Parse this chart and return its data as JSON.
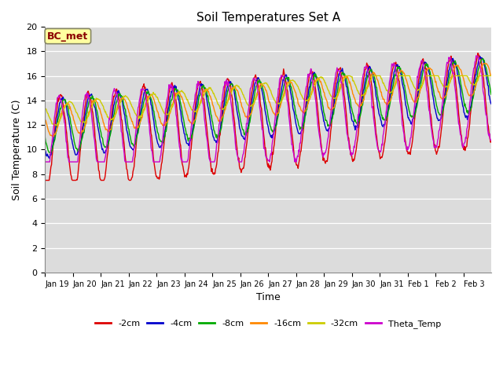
{
  "title": "Soil Temperatures Set A",
  "xlabel": "Time",
  "ylabel": "Soil Temperature (C)",
  "ylim": [
    0,
    20
  ],
  "yticks": [
    0,
    2,
    4,
    6,
    8,
    10,
    12,
    14,
    16,
    18,
    20
  ],
  "background_color": "#dcdcdc",
  "annotation_text": "BC_met",
  "annotation_color": "#8b0000",
  "annotation_bg": "#ffffa0",
  "series_colors": {
    "-2cm": "#dd0000",
    "-4cm": "#0000cc",
    "-8cm": "#00aa00",
    "-16cm": "#ff8800",
    "-32cm": "#cccc00",
    "Theta_Temp": "#cc00cc"
  },
  "n_days": 16,
  "tick_labels": [
    "Jan 19",
    "Jan 20",
    "Jan 21",
    "Jan 22",
    "Jan 23",
    "Jan 24",
    "Jan 25",
    "Jan 26",
    "Jan 27",
    "Jan 28",
    "Jan 29",
    "Jan 30",
    "Jan 31",
    "Feb 1",
    "Feb 2",
    "Feb 3"
  ],
  "linewidth": 1.0
}
